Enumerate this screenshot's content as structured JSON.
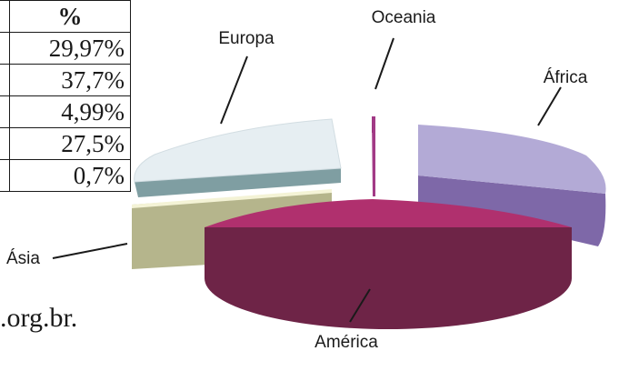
{
  "table": {
    "header": "%",
    "rows": [
      "29,97%",
      "37,7%",
      "4,99%",
      "27,5%",
      "0,7%"
    ]
  },
  "source_fragment": ".org.br.",
  "chart_data": {
    "type": "pie",
    "variant": "3d-exploded",
    "slices": [
      {
        "label": "Oceania",
        "color": "#a23a86"
      },
      {
        "label": "África",
        "color": "#b3aad6"
      },
      {
        "label": "América",
        "color": "#b0306e"
      },
      {
        "label": "Ásia",
        "color": "#f4f3d6"
      },
      {
        "label": "Europa",
        "color": "#e6eef2"
      }
    ],
    "legend": "none"
  }
}
